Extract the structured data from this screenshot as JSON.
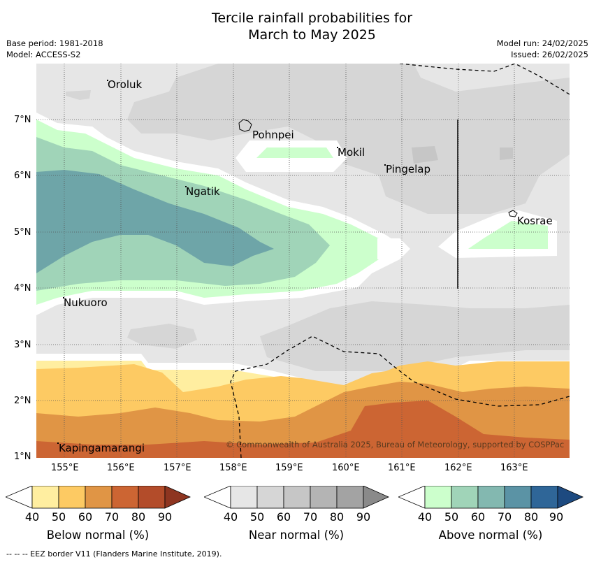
{
  "title_line1": "Tercile rainfall probabilities for",
  "title_line2": "March to May 2025",
  "meta": {
    "base_period": "Base period: 1981-2018",
    "model": "Model: ACCESS-S2",
    "model_run": "Model run: 24/02/2025",
    "issued": "Issued: 26/02/2025"
  },
  "axes": {
    "x_ticks": [
      "155°E",
      "156°E",
      "157°E",
      "158°E",
      "159°E",
      "160°E",
      "161°E",
      "162°E",
      "163°E"
    ],
    "y_ticks": [
      "7°N",
      "6°N",
      "5°N",
      "4°N",
      "3°N",
      "2°N",
      "1°N"
    ]
  },
  "places": [
    "Oroluk",
    "Pohnpei",
    "Mokil",
    "Pingelap",
    "Ngatik",
    "Kosrae",
    "Nukuoro",
    "Kapingamarangi"
  ],
  "copyright": "© Commonwealth of Australia 2025, Bureau of Meteorology, supported by COSPPac",
  "colorbars": [
    {
      "label": "Below normal (%)",
      "ticks": [
        "40",
        "50",
        "60",
        "70",
        "80",
        "90"
      ],
      "colors": [
        "#ffffff",
        "#ffeea0",
        "#fdca63",
        "#e09545",
        "#cc6533",
        "#b34c2a",
        "#8e3520"
      ]
    },
    {
      "label": "Near normal (%)",
      "ticks": [
        "40",
        "50",
        "60",
        "70",
        "80",
        "90"
      ],
      "colors": [
        "#ffffff",
        "#e6e6e6",
        "#d6d6d6",
        "#c6c6c6",
        "#b4b4b4",
        "#a3a3a3",
        "#8a8a8a"
      ]
    },
    {
      "label": "Above normal (%)",
      "ticks": [
        "40",
        "50",
        "60",
        "70",
        "80",
        "90"
      ],
      "colors": [
        "#ffffff",
        "#ccffcc",
        "#a0d4b8",
        "#83b8b0",
        "#5b93a5",
        "#2f6698",
        "#1d4a80"
      ]
    }
  ],
  "footnote": "--  --  -- EEZ border V11 (Flanders Marine Institute, 2019)."
}
